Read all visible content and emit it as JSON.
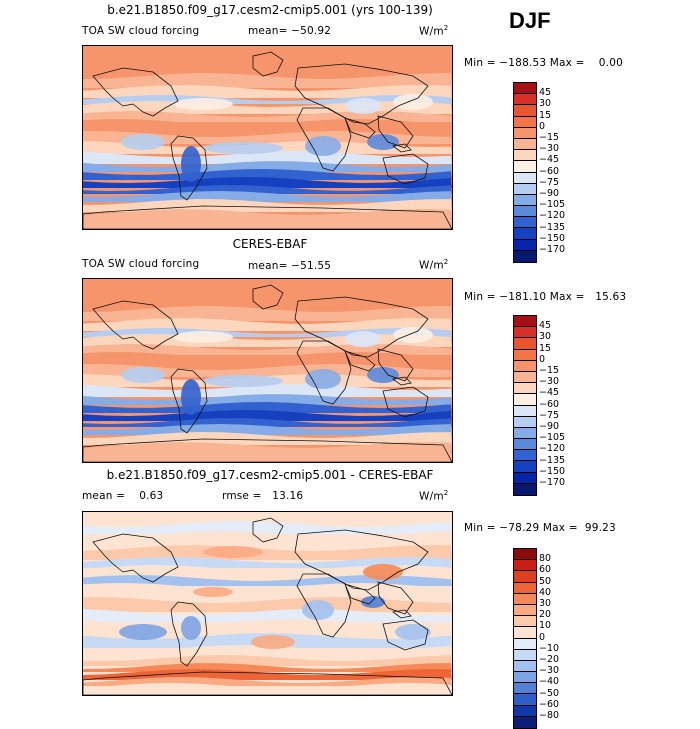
{
  "season": "DJF",
  "panels": [
    {
      "title": "b.e21.B1850.f09_g17.cesm2-cmip5.001 (yrs 100-139)",
      "field_label": "TOA SW cloud forcing",
      "mean_text": "mean= −50.92",
      "rmse_text": "",
      "units_base": "W/m",
      "units_exp": "2",
      "minmax_text": "Min = −188.53 Max =    0.00",
      "levels": [
        "45",
        "30",
        "15",
        "0",
        "−15",
        "−30",
        "−45",
        "−60",
        "−75",
        "−90",
        "−105",
        "−120",
        "−135",
        "−150",
        "−170"
      ],
      "colors": [
        "#a50f15",
        "#d73027",
        "#e8562f",
        "#f37445",
        "#f6946b",
        "#f9b593",
        "#fcd6bd",
        "#fcefe3",
        "#dbe6f7",
        "#b4cdf1",
        "#86ace7",
        "#5b89db",
        "#3262cf",
        "#1540bf",
        "#0524a8",
        "#08186e"
      ],
      "style": "model"
    },
    {
      "title": "CERES-EBAF",
      "field_label": "TOA SW cloud forcing",
      "mean_text": "mean= −51.55",
      "rmse_text": "",
      "units_base": "W/m",
      "units_exp": "2",
      "minmax_text": "Min = −181.10 Max =   15.63",
      "levels": [
        "45",
        "30",
        "15",
        "0",
        "−15",
        "−30",
        "−45",
        "−60",
        "−75",
        "−90",
        "−105",
        "−120",
        "−135",
        "−150",
        "−170"
      ],
      "colors": [
        "#a50f15",
        "#d73027",
        "#e8562f",
        "#f37445",
        "#f6946b",
        "#f9b593",
        "#fcd6bd",
        "#fcefe3",
        "#dbe6f7",
        "#b4cdf1",
        "#86ace7",
        "#5b89db",
        "#3262cf",
        "#1540bf",
        "#0524a8",
        "#08186e"
      ],
      "style": "obs"
    },
    {
      "title": "b.e21.B1850.f09_g17.cesm2-cmip5.001 - CERES-EBAF",
      "field_label": "",
      "mean_text": "mean =    0.63",
      "rmse_text": "rmse =   13.16",
      "units_base": "W/m",
      "units_exp": "2",
      "minmax_text": "Min = −78.29 Max =  99.23",
      "levels": [
        "80",
        "60",
        "50",
        "40",
        "30",
        "20",
        "10",
        "0",
        "−10",
        "−20",
        "−30",
        "−40",
        "−50",
        "−60",
        "−80"
      ],
      "colors": [
        "#8b0a0a",
        "#c81e14",
        "#e0401f",
        "#f06535",
        "#f58a58",
        "#f9aa82",
        "#fcc9ab",
        "#fde4d2",
        "#e4ecf9",
        "#c7daf5",
        "#a3c1ee",
        "#7ca3e4",
        "#5281d7",
        "#2f5ec8",
        "#1237a8",
        "#0a1f78"
      ],
      "style": "diff"
    }
  ]
}
